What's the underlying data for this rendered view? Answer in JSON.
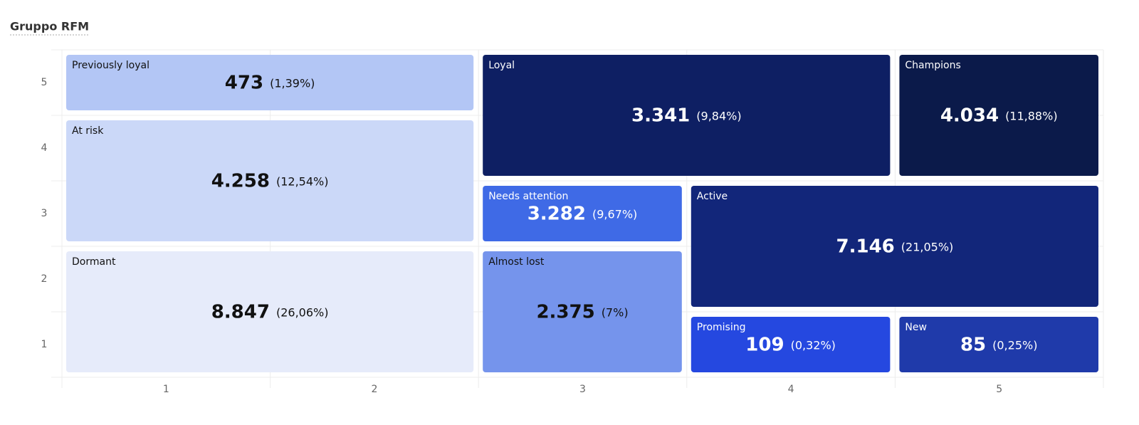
{
  "chart_data": {
    "type": "segment-grid",
    "title": "Gruppo RFM",
    "xlim": [
      0.5,
      5.5
    ],
    "ylim": [
      0.5,
      5.5
    ],
    "xticks": [
      1,
      2,
      3,
      4,
      5
    ],
    "yticks": [
      1,
      2,
      3,
      4,
      5
    ],
    "segments": [
      {
        "name": "Previously loyal",
        "x": [
          1,
          2
        ],
        "y": [
          5,
          5
        ],
        "value": 473,
        "value_label": "473",
        "share": 1.39,
        "share_label": "(1,39%)",
        "color": "#b3c6f5",
        "text_color": "#111111"
      },
      {
        "name": "At risk",
        "x": [
          1,
          2
        ],
        "y": [
          3,
          4
        ],
        "value": 4258,
        "value_label": "4.258",
        "share": 12.54,
        "share_label": "(12,54%)",
        "color": "#cbd8f8",
        "text_color": "#111111"
      },
      {
        "name": "Dormant",
        "x": [
          1,
          2
        ],
        "y": [
          1,
          2
        ],
        "value": 8847,
        "value_label": "8.847",
        "share": 26.06,
        "share_label": "(26,06%)",
        "color": "#e6ebfa",
        "text_color": "#111111"
      },
      {
        "name": "Loyal",
        "x": [
          3,
          4
        ],
        "y": [
          4,
          5
        ],
        "value": 3341,
        "value_label": "3.341",
        "share": 9.84,
        "share_label": "(9,84%)",
        "color": "#0e1f63",
        "text_color": "#ffffff"
      },
      {
        "name": "Champions",
        "x": [
          5,
          5
        ],
        "y": [
          4,
          5
        ],
        "value": 4034,
        "value_label": "4.034",
        "share": 11.88,
        "share_label": "(11,88%)",
        "color": "#0b1a4a",
        "text_color": "#ffffff"
      },
      {
        "name": "Needs attention",
        "x": [
          3,
          3
        ],
        "y": [
          3,
          3
        ],
        "value": 3282,
        "value_label": "3.282",
        "share": 9.67,
        "share_label": "(9,67%)",
        "color": "#3f6ae6",
        "text_color": "#ffffff"
      },
      {
        "name": "Almost lost",
        "x": [
          3,
          3
        ],
        "y": [
          1,
          2
        ],
        "value": 2375,
        "value_label": "2.375",
        "share": 7,
        "share_label": "(7%)",
        "color": "#7594ec",
        "text_color": "#111111"
      },
      {
        "name": "Active",
        "x": [
          4,
          5
        ],
        "y": [
          2,
          3
        ],
        "value": 7146,
        "value_label": "7.146",
        "share": 21.05,
        "share_label": "(21,05%)",
        "color": "#12267a",
        "text_color": "#ffffff"
      },
      {
        "name": "Promising",
        "x": [
          4,
          4
        ],
        "y": [
          1,
          1
        ],
        "value": 109,
        "value_label": "109",
        "share": 0.32,
        "share_label": "(0,32%)",
        "color": "#2548e0",
        "text_color": "#ffffff"
      },
      {
        "name": "New",
        "x": [
          5,
          5
        ],
        "y": [
          1,
          1
        ],
        "value": 85,
        "value_label": "85",
        "share": 0.25,
        "share_label": "(0,25%)",
        "color": "#1f3aaa",
        "text_color": "#ffffff"
      }
    ]
  }
}
